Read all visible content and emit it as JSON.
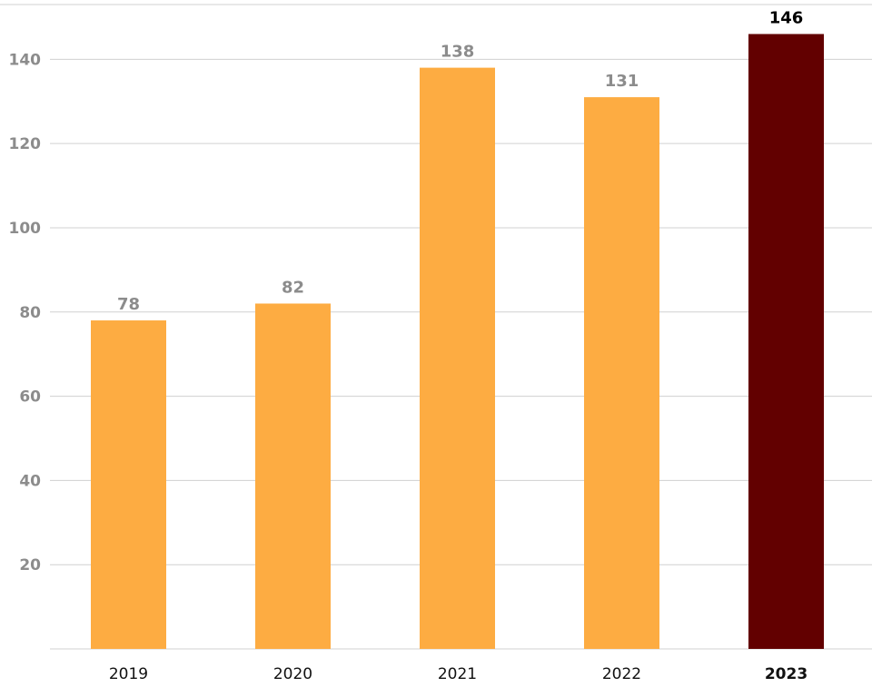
{
  "chart_data": {
    "type": "bar",
    "categories": [
      "2019",
      "2020",
      "2021",
      "2022",
      "2023"
    ],
    "values": [
      78,
      82,
      138,
      131,
      146
    ],
    "data_labels": [
      "78",
      "82",
      "138",
      "131",
      "146"
    ],
    "yticks": [
      20,
      40,
      60,
      80,
      100,
      120,
      140
    ],
    "ytick_labels": [
      "20",
      "40",
      "60",
      "80",
      "100",
      "120",
      "140"
    ],
    "ylim": [
      0,
      153
    ],
    "grid": true,
    "legend": "none",
    "highlight_index": 4,
    "colors": {
      "bar": "#fdac42",
      "highlight_bar": "#620000",
      "grid": "#d0d0d0",
      "tick_text": "#8c8c8c",
      "category_text": "#111111",
      "highlight_text": "#000000"
    }
  }
}
